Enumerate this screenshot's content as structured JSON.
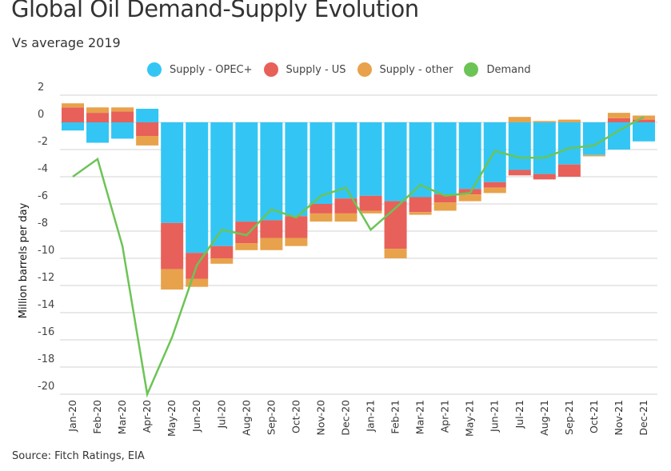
{
  "chart_data": {
    "type": "bar",
    "subtype": "stacked-bar-with-line",
    "title": "Global Oil Demand-Supply Evolution",
    "subtitle": "Vs average 2019",
    "xlabel": "",
    "ylabel": "Million barrels per day",
    "ylim": [
      -20,
      2
    ],
    "yticks": [
      2,
      0,
      -2,
      -4,
      -6,
      -8,
      -10,
      -12,
      -14,
      -16,
      -18,
      -20
    ],
    "grid": true,
    "legend_position": "top",
    "source": "Source: Fitch Ratings, EIA",
    "categories": [
      "Jan-20",
      "Feb-20",
      "Mar-20",
      "Apr-20",
      "May-20",
      "Jun-20",
      "Jul-20",
      "Aug-20",
      "Sep-20",
      "Oct-20",
      "Nov-20",
      "Dec-20",
      "Jan-21",
      "Feb-21",
      "Mar-21",
      "Apr-21",
      "May-21",
      "Jun-21",
      "Jul-21",
      "Aug-21",
      "Sep-21",
      "Oct-21",
      "Nov-21",
      "Dec-21"
    ],
    "series": [
      {
        "name": "Supply - OPEC+",
        "type": "bar",
        "color": "#33c6f4",
        "values": [
          -0.6,
          -1.5,
          -1.2,
          1.0,
          -7.4,
          -9.6,
          -9.1,
          -7.3,
          -7.2,
          -6.9,
          -6.0,
          -5.6,
          -5.4,
          -5.8,
          -5.5,
          -5.3,
          -4.9,
          -4.4,
          -3.5,
          -3.8,
          -3.1,
          -2.4,
          -2.0,
          -1.4
        ]
      },
      {
        "name": "Supply - US",
        "type": "bar",
        "color": "#e8605a",
        "values": [
          1.1,
          0.7,
          0.8,
          -1.0,
          -3.4,
          -1.9,
          -0.9,
          -1.6,
          -1.3,
          -1.6,
          -0.7,
          -1.1,
          -1.1,
          -3.5,
          -1.1,
          -0.6,
          -0.4,
          -0.4,
          -0.4,
          -0.4,
          -0.9,
          0.0,
          0.3,
          0.2
        ]
      },
      {
        "name": "Supply - other",
        "type": "bar",
        "color": "#e8a24c",
        "values": [
          0.3,
          0.4,
          0.3,
          -0.7,
          -1.5,
          -0.6,
          -0.4,
          -0.5,
          -0.9,
          -0.6,
          -0.6,
          -0.6,
          -0.2,
          -0.7,
          -0.2,
          -0.6,
          -0.5,
          -0.4,
          0.4,
          0.1,
          0.2,
          -0.1,
          0.4,
          0.3
        ]
      },
      {
        "name": "Demand",
        "type": "line",
        "color": "#6cc456",
        "values": [
          -4.0,
          -2.7,
          -9.1,
          -20.0,
          -15.8,
          -10.5,
          -7.9,
          -8.3,
          -6.4,
          -7.0,
          -5.4,
          -4.8,
          -7.9,
          -6.3,
          -4.6,
          -5.4,
          -5.2,
          -2.1,
          -2.6,
          -2.6,
          -1.9,
          -1.7,
          -0.6,
          0.4
        ]
      }
    ]
  }
}
